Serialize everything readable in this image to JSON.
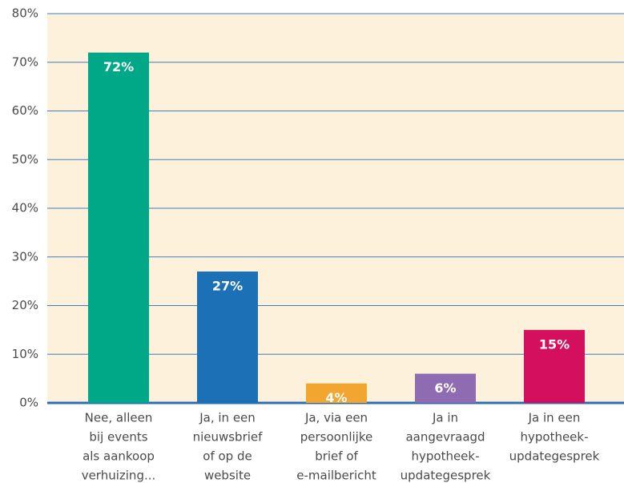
{
  "chart_data": {
    "type": "bar",
    "categories": [
      [
        "Nee, alleen",
        "bij events",
        "als aankoop",
        "verhuizing..."
      ],
      [
        "Ja, in een",
        "nieuwsbrief",
        "of op de",
        "website"
      ],
      [
        "Ja, via een",
        "persoonlijke",
        "brief of",
        "e-mailbericht"
      ],
      [
        "Ja in",
        "aangevraagd",
        "hypotheek-",
        "updategesprek"
      ],
      [
        "Ja in een",
        "hypotheek-",
        "updategesprek"
      ]
    ],
    "values": [
      72,
      27,
      4,
      6,
      15
    ],
    "value_labels": [
      "72%",
      "27%",
      "4%",
      "6%",
      "15%"
    ],
    "colors": [
      "#00a887",
      "#1b70b6",
      "#f2a62f",
      "#8f6bb1",
      "#d4105e"
    ],
    "ylim": [
      0,
      80
    ],
    "yticks": [
      {
        "value": 0,
        "label": "0%"
      },
      {
        "value": 10,
        "label": "10%"
      },
      {
        "value": 20,
        "label": "20%"
      },
      {
        "value": 30,
        "label": "30%"
      },
      {
        "value": 40,
        "label": "40%"
      },
      {
        "value": 50,
        "label": "50%"
      },
      {
        "value": 60,
        "label": "60%"
      },
      {
        "value": 70,
        "label": "70%"
      },
      {
        "value": 80,
        "label": "80%"
      }
    ],
    "grid": true
  }
}
